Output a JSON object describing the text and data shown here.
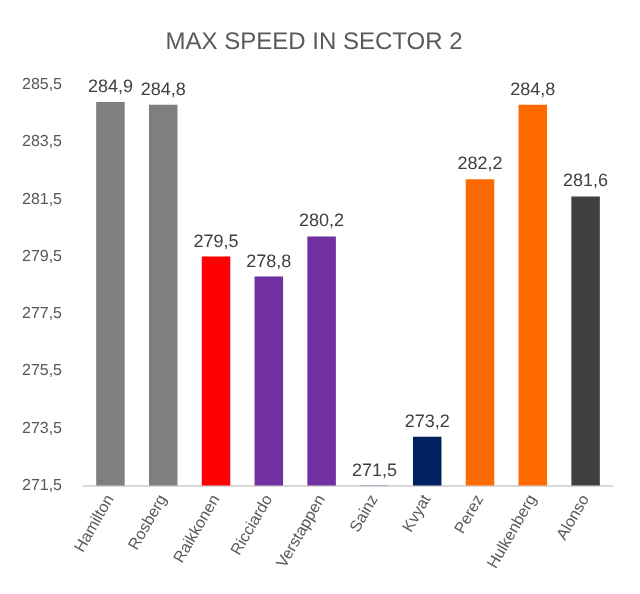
{
  "chart_data": {
    "type": "bar",
    "title": "MAX SPEED IN SECTOR 2",
    "categories": [
      "Hamilton",
      "Rosberg",
      "Raikkonen",
      "Ricciardo",
      "Verstappen",
      "Sainz",
      "Kvyat",
      "Perez",
      "Hulkenberg",
      "Alonso"
    ],
    "values": [
      284.9,
      284.8,
      279.5,
      278.8,
      280.2,
      271.5,
      273.2,
      282.2,
      284.8,
      281.6
    ],
    "colors": [
      "#7f7f7f",
      "#7f7f7f",
      "#ff0000",
      "#7030a0",
      "#7030a0",
      "#7030a0",
      "#002060",
      "#ff6a00",
      "#ff6a00",
      "#404040"
    ],
    "value_labels": [
      "284,9",
      "284,8",
      "279,5",
      "278,8",
      "280,2",
      "271,5",
      "273,2",
      "282,2",
      "284,8",
      "281,6"
    ],
    "ylim": [
      271.5,
      285.5
    ],
    "yticks": [
      {
        "value": 271.5,
        "label": "271,5"
      },
      {
        "value": 273.5,
        "label": "273,5"
      },
      {
        "value": 275.5,
        "label": "275,5"
      },
      {
        "value": 277.5,
        "label": "277,5"
      },
      {
        "value": 279.5,
        "label": "279,5"
      },
      {
        "value": 281.5,
        "label": "281,5"
      },
      {
        "value": 283.5,
        "label": "283,5"
      },
      {
        "value": 285.5,
        "label": "285,5"
      }
    ],
    "grid": false,
    "legend": false
  }
}
